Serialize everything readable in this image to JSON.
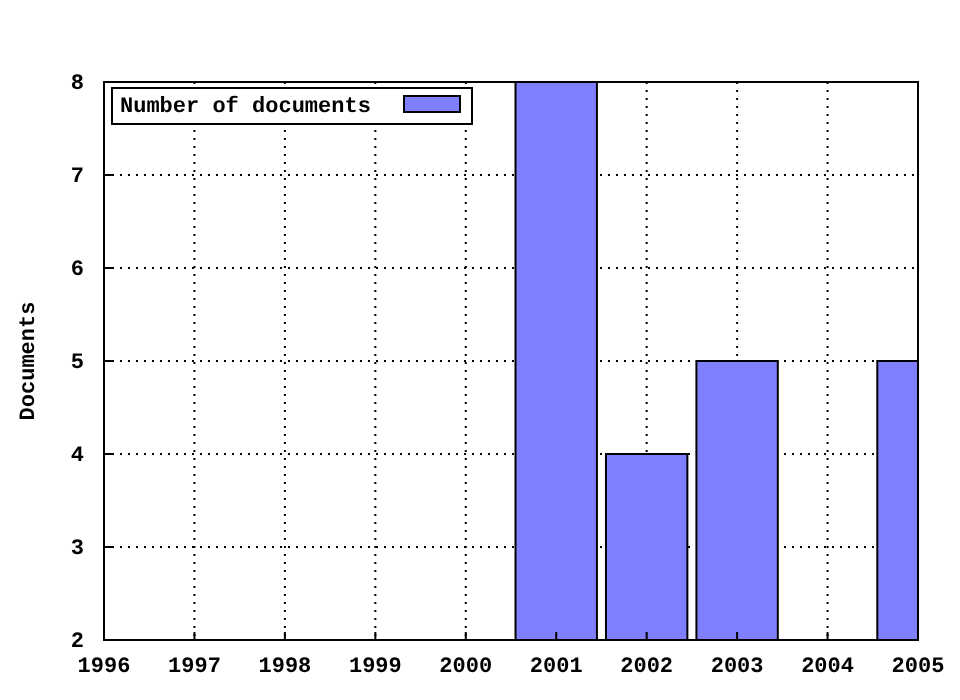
{
  "chart_data": {
    "type": "bar",
    "ylabel": "Documents",
    "x": [
      2001,
      2002,
      2003,
      2005
    ],
    "series": [
      {
        "name": "Number of documents",
        "color": "#8080ff",
        "values": [
          8,
          4,
          5,
          5
        ]
      }
    ],
    "xlim": [
      1996,
      2005
    ],
    "xticks": [
      1996,
      1997,
      1998,
      1999,
      2000,
      2001,
      2002,
      2003,
      2004,
      2005
    ],
    "ylim": [
      2,
      8
    ],
    "yticks": [
      2,
      3,
      4,
      5,
      6,
      7,
      8
    ],
    "grid": true,
    "legend": "top left"
  }
}
